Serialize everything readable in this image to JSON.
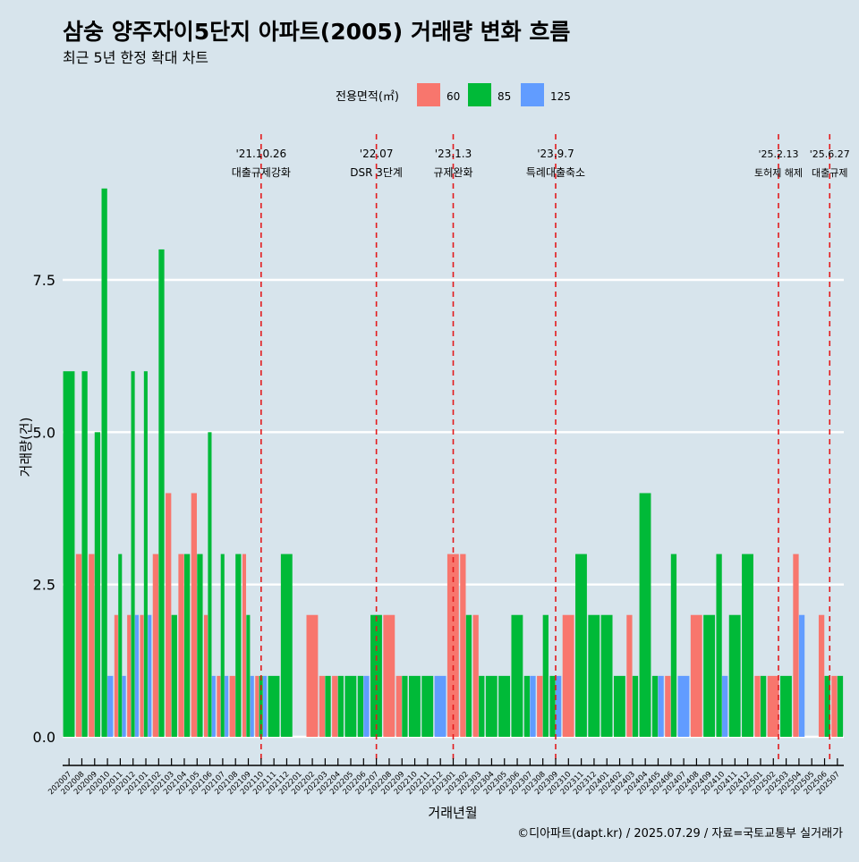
{
  "title": "삼숭 양주자이5단지 아파트(2005) 거래량 변화 흐름",
  "subtitle": "최근 5년 한정 확대 차트",
  "caption": "©디아파트(dapt.kr) / 2025.07.29 / 자료=국토교통부 실거래가",
  "colors": {
    "background": "#d7e4ec",
    "grid": "#ffffff",
    "s60": "#f8766d",
    "s85": "#00ba38",
    "s125": "#619cff",
    "vline": "#e31a1c"
  },
  "chart_data": {
    "type": "bar",
    "title": "삼숭 양주자이5단지 아파트(2005) 거래량 변화 흐름",
    "subtitle": "최근 5년 한정 확대 차트",
    "xlabel": "거래년월",
    "ylabel": "거래량(건)",
    "ylim": [
      0,
      9
    ],
    "yticks": [
      0,
      2.5,
      5,
      7.5
    ],
    "ytick_labels": [
      "0.0",
      "2.5",
      "5.0",
      "7.5"
    ],
    "grid": true,
    "legend": {
      "title": "전용면적(㎡)",
      "position": "top",
      "entries": [
        "60",
        "85",
        "125"
      ]
    },
    "categories": [
      "202007",
      "202008",
      "202009",
      "202010",
      "202011",
      "202012",
      "202101",
      "202102",
      "202103",
      "202104",
      "202105",
      "202106",
      "202107",
      "202108",
      "202109",
      "202110",
      "202111",
      "202112",
      "202201",
      "202202",
      "202203",
      "202204",
      "202205",
      "202206",
      "202207",
      "202208",
      "202209",
      "202210",
      "202211",
      "202212",
      "202301",
      "202302",
      "202303",
      "202304",
      "202305",
      "202306",
      "202307",
      "202308",
      "202309",
      "202310",
      "202311",
      "202312",
      "202401",
      "202402",
      "202403",
      "202404",
      "202405",
      "202406",
      "202407",
      "202408",
      "202409",
      "202410",
      "202411",
      "202412",
      "202501",
      "202502",
      "202503",
      "202504",
      "202505",
      "202506",
      "202507"
    ],
    "tick_labels": [
      "202007",
      "202008",
      "202009",
      "202010",
      "202011",
      "202012",
      "202101",
      "202102",
      "202103",
      "202104",
      "202105",
      "202106",
      "202107",
      "202108",
      "202109",
      "202110",
      "202111",
      "202112",
      "202201",
      "202202",
      "202203",
      "202204",
      "202205",
      "202206",
      "202207",
      "202208",
      "202209",
      "202210",
      "202211",
      "202212",
      "202301",
      "202302",
      "202303",
      "202304",
      "202305",
      "202306",
      "202307",
      "202308",
      "202309",
      "202310",
      "202311",
      "202312",
      "202401",
      "202402",
      "202403",
      "202404",
      "202405",
      "202406",
      "202407",
      "202408",
      "202409",
      "202410",
      "202411",
      "202412",
      "202501",
      "202502",
      "202503",
      "202504",
      "202505",
      "202506",
      "202507"
    ],
    "series": [
      {
        "name": "60",
        "values": [
          0,
          3,
          3,
          0,
          2,
          2,
          2,
          3,
          4,
          3,
          4,
          2,
          1,
          1,
          3,
          1,
          0,
          0,
          0,
          2,
          1,
          1,
          0,
          0,
          0,
          2,
          1,
          0,
          0,
          0,
          3,
          3,
          2,
          0,
          0,
          0,
          0,
          1,
          0,
          2,
          0,
          0,
          0,
          0,
          2,
          0,
          0,
          1,
          0,
          2,
          0,
          0,
          0,
          0,
          1,
          1,
          0,
          3,
          0,
          2,
          1
        ]
      },
      {
        "name": "85",
        "values": [
          6,
          6,
          5,
          9,
          3,
          6,
          6,
          8,
          2,
          3,
          3,
          5,
          3,
          3,
          2,
          1,
          1,
          3,
          0,
          0,
          1,
          1,
          1,
          1,
          2,
          0,
          1,
          1,
          1,
          0,
          0,
          2,
          1,
          1,
          1,
          2,
          1,
          2,
          1,
          0,
          3,
          2,
          2,
          1,
          1,
          4,
          1,
          3,
          0,
          0,
          2,
          3,
          2,
          3,
          1,
          0,
          1,
          0,
          0,
          1,
          1
        ]
      },
      {
        "name": "125",
        "values": [
          0,
          0,
          0,
          1,
          1,
          2,
          2,
          0,
          0,
          0,
          0,
          1,
          1,
          0,
          1,
          1,
          0,
          0,
          0,
          0,
          0,
          0,
          0,
          1,
          0,
          0,
          0,
          0,
          0,
          1,
          0,
          0,
          0,
          0,
          0,
          0,
          1,
          0,
          1,
          0,
          0,
          0,
          0,
          0,
          0,
          0,
          1,
          0,
          1,
          0,
          0,
          1,
          0,
          0,
          0,
          0,
          0,
          2,
          0,
          0,
          0
        ]
      }
    ],
    "events": [
      {
        "date": "'21.10.26",
        "label": "대출규제강화",
        "index": 15.0
      },
      {
        "date": "'22.07",
        "label": "DSR 3단계",
        "index": 24.0
      },
      {
        "date": "'23.1.3",
        "label": "규제완화",
        "index": 30.0
      },
      {
        "date": "'23.9.7",
        "label": "특례대출축소",
        "index": 38.0
      },
      {
        "date": "'25.2.13",
        "label": "토허제 해제",
        "index": 55.4
      },
      {
        "date": "'25.6.27",
        "label": "대출규제",
        "index": 59.4
      }
    ]
  }
}
